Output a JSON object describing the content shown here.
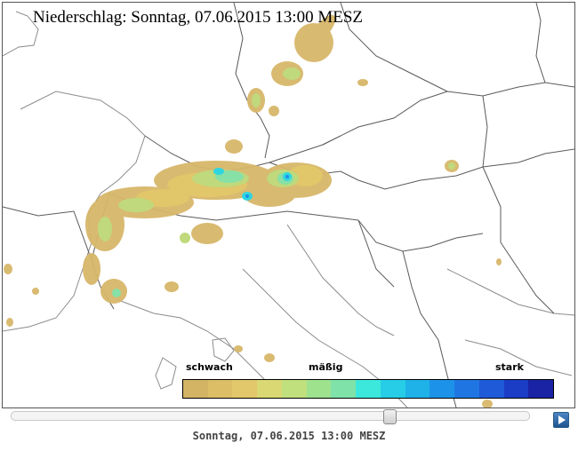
{
  "map": {
    "title": "Niederschlag: Sonntag, 07.06.2015 13:00  MESZ",
    "colors": {
      "border_line": "#5a5a5a",
      "coast_line": "#808080",
      "cells": [
        "#d7b76a",
        "#e2c86a",
        "#bfd97c",
        "#87e0a6",
        "#2fd6e0",
        "#1c8fe8"
      ]
    }
  },
  "legend": {
    "low_label": "schwach",
    "mid_label": "mäßig",
    "high_label": "stark",
    "colors": [
      "#d2b464",
      "#dcbe66",
      "#e2c86a",
      "#d9d872",
      "#c0e07e",
      "#9ee28e",
      "#7fe2a8",
      "#3ce8dc",
      "#27cde6",
      "#1eb2e8",
      "#1c93e8",
      "#1f76e2",
      "#1f5ad8",
      "#1b3dc6",
      "#1a23a4"
    ]
  },
  "timeline": {
    "position_fraction": 0.73,
    "play_label": "play",
    "timestamp": "Sonntag, 07.06.2015 13:00 MESZ"
  }
}
